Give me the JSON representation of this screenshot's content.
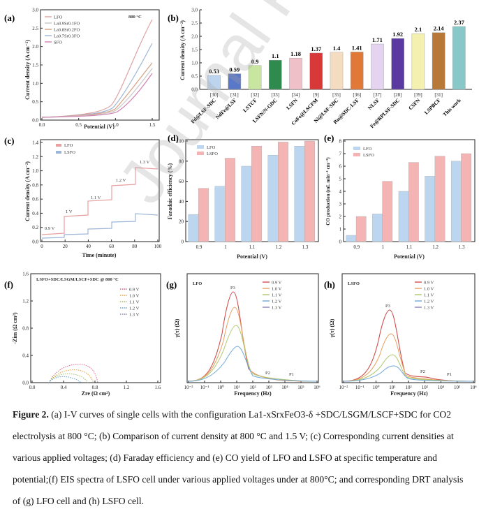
{
  "panels": {
    "a": {
      "label": "(a)",
      "temp": "800 °C",
      "xlabel": "Potential (V)",
      "ylabel": "Current density (A cm⁻²)",
      "legend": [
        "LFO",
        "La0.9Sr0.1FO",
        "La0.8Sr0.2FO",
        "La0.7Sr0.3FO",
        "SFO"
      ],
      "legend_colors": [
        "#e0a0a0",
        "#c8c8c8",
        "#d6a080",
        "#9db6d8",
        "#d080b0"
      ],
      "xticks": [
        "0.0",
        "0.5",
        "1.0",
        "1.5"
      ],
      "yticks": [
        "0.0",
        "0.5",
        "1.0",
        "1.5",
        "2.0",
        "2.5",
        "3.0"
      ]
    },
    "b": {
      "label": "(b)",
      "ylabel": "Current density (A cm⁻²)",
      "this_work": "This work",
      "yticks": [
        "0.0",
        "0.5",
        "1.0",
        "1.5",
        "2.0",
        "2.5",
        "3.0"
      ]
    },
    "c": {
      "label": "(c)",
      "xlabel": "Time (minute)",
      "ylabel": "Current density (A cm⁻²)",
      "legend": [
        "LFO",
        "LSFO"
      ],
      "steps": [
        "0.9 V",
        "1 V",
        "1.1 V",
        "1.2 V",
        "1.3 V"
      ],
      "xticks": [
        "0",
        "20",
        "40",
        "60",
        "80",
        "100"
      ],
      "yticks": [
        "0.0",
        "0.2",
        "0.4",
        "0.6",
        "0.8",
        "1.0",
        "1.2",
        "1.4"
      ]
    },
    "d": {
      "label": "(d)",
      "xlabel": "Potential (V)",
      "ylabel": "Faradaic efficiency (%)",
      "legend": [
        "LFO",
        "LSFO"
      ],
      "yticks": [
        "0",
        "20",
        "40",
        "60",
        "80",
        "100"
      ]
    },
    "e": {
      "label": "(e)",
      "xlabel": "Potential (V)",
      "ylabel": "CO production (mL min⁻¹ cm⁻²)",
      "legend": [
        "LFO",
        "LSFO"
      ],
      "yticks": [
        "0",
        "1",
        "2",
        "3",
        "4",
        "5",
        "6",
        "7",
        "8"
      ]
    },
    "f": {
      "label": "(f)",
      "title": "LSFO+SDC/LSGM/LSCF+SDC @ 800 °C",
      "xlabel": "Zre (Ω cm²)",
      "ylabel": "-Zim (Ω cm²)",
      "legend": [
        "0.9 V",
        "1.0 V",
        "1.1 V",
        "1.2 V",
        "1.3 V"
      ],
      "xticks": [
        "0.0",
        "0.4",
        "0.8",
        "1.2",
        "1.6"
      ],
      "yticks": [
        "0.0",
        "0.4",
        "0.8",
        "1.2",
        "1.6"
      ]
    },
    "g": {
      "label": "(g)",
      "title": "LFO",
      "xlabel": "Frequency (Hz)",
      "ylabel": "γ(τ) (Ω)",
      "legend": [
        "0.9 V",
        "1.0 V",
        "1.1 V",
        "1.2 V",
        "1.3 V"
      ],
      "peaks": [
        "P3",
        "P2",
        "P1"
      ],
      "xticks": [
        "10⁻²",
        "10⁻¹",
        "10⁰",
        "10¹",
        "10²",
        "10³",
        "10⁴",
        "10⁵",
        "10⁶"
      ]
    },
    "h": {
      "label": "(h)",
      "title": "LSFO",
      "xlabel": "Frequency (Hz)",
      "ylabel": "γ(τ) (Ω)",
      "legend": [
        "0.9 V",
        "1.0 V",
        "1.1 V",
        "1.2 V",
        "1.3 V"
      ],
      "peaks": [
        "P3",
        "P2",
        "P1"
      ],
      "xticks": [
        "10⁻²",
        "10⁻¹",
        "10⁰",
        "10¹",
        "10²",
        "10³",
        "10⁴",
        "10⁵",
        "10⁶"
      ]
    }
  },
  "chart_data": [
    {
      "id": "b",
      "type": "bar",
      "title": "Comparison of current density at 800 °C and 1.5 V",
      "categories": [
        "Pd@LSF-SDC",
        "NdFe@LSF",
        "LSTCF",
        "LSFN/N-GDC",
        "LSFN",
        "CoFe@LSCFM",
        "Ni@LSF-SDC",
        "Ru@SDC-LSF",
        "NLSF",
        "Fe@RPLSF-SDC",
        "CSFN",
        "LSPBCF",
        "This work"
      ],
      "refs": [
        "[30]",
        "[31]",
        "[32]",
        "[33]",
        "[34]",
        "[9]",
        "[35]",
        "[36]",
        "[37]",
        "[28]",
        "[39]",
        "[31]",
        ""
      ],
      "values": [
        0.53,
        0.59,
        0.9,
        1.1,
        1.18,
        1.37,
        1.4,
        1.41,
        1.71,
        1.92,
        2.1,
        2.14,
        2.37
      ],
      "value_labels": [
        "0.53",
        "0.59",
        "0.9",
        "1.1",
        "1.18",
        "1.37",
        "1.4",
        "1.41",
        "1.71",
        "1.92",
        "2.1",
        "2.14",
        "2.37"
      ],
      "colors": [
        "#bcd4ee",
        "#5a78c8",
        "#c8e6a0",
        "#2f8a4e",
        "#f0c0c8",
        "#d83838",
        "#f4dcc0",
        "#e07838",
        "#e4d4f0",
        "#5a3aa0",
        "#f4f0b0",
        "#b87838",
        "#88c8c8"
      ],
      "ylim": [
        0,
        3
      ],
      "ylabel": "Current density (A cm-2)"
    },
    {
      "id": "d",
      "type": "bar",
      "categories": [
        "0.9",
        "1",
        "1.1",
        "1.2",
        "1.3"
      ],
      "series": [
        {
          "name": "LFO",
          "values": [
            27,
            55,
            75,
            86,
            95
          ]
        },
        {
          "name": "LSFO",
          "values": [
            53,
            83,
            95,
            99,
            100
          ]
        }
      ],
      "ylim": [
        0,
        100
      ],
      "xlabel": "Potential (V)",
      "ylabel": "Faradaic efficiency (%)"
    },
    {
      "id": "e",
      "type": "bar",
      "categories": [
        "0.9",
        "1",
        "1.1",
        "1.2",
        "1.3"
      ],
      "series": [
        {
          "name": "LFO",
          "values": [
            0.5,
            2.2,
            4.0,
            5.2,
            6.4
          ]
        },
        {
          "name": "LSFO",
          "values": [
            2.0,
            4.8,
            6.3,
            6.8,
            7.0
          ]
        }
      ],
      "ylim": [
        0,
        8
      ],
      "xlabel": "Potential (V)",
      "ylabel": "CO production (mL min-1 cm-2)"
    }
  ],
  "caption": {
    "label": "Figure 2.",
    "text": "(a) I-V curves of single cells with the configuration La1-xSrxFeO3-δ +SDC/LSGM/LSCF+SDC for CO2 electrolysis at 800 °C; (b) Comparison of current density at 800 °C and 1.5 V; (c) Corresponding current densities at various applied voltages; (d) Faraday efficiency and (e) CO yield of LFO and LSFO at specific temperature and potential;(f) EIS spectra of LSFO cell under various applied voltages under at 800°C; and corresponding DRT analysis of (g) LFO cell and (h) LSFO cell."
  },
  "watermark": "Journal Pre-proof"
}
